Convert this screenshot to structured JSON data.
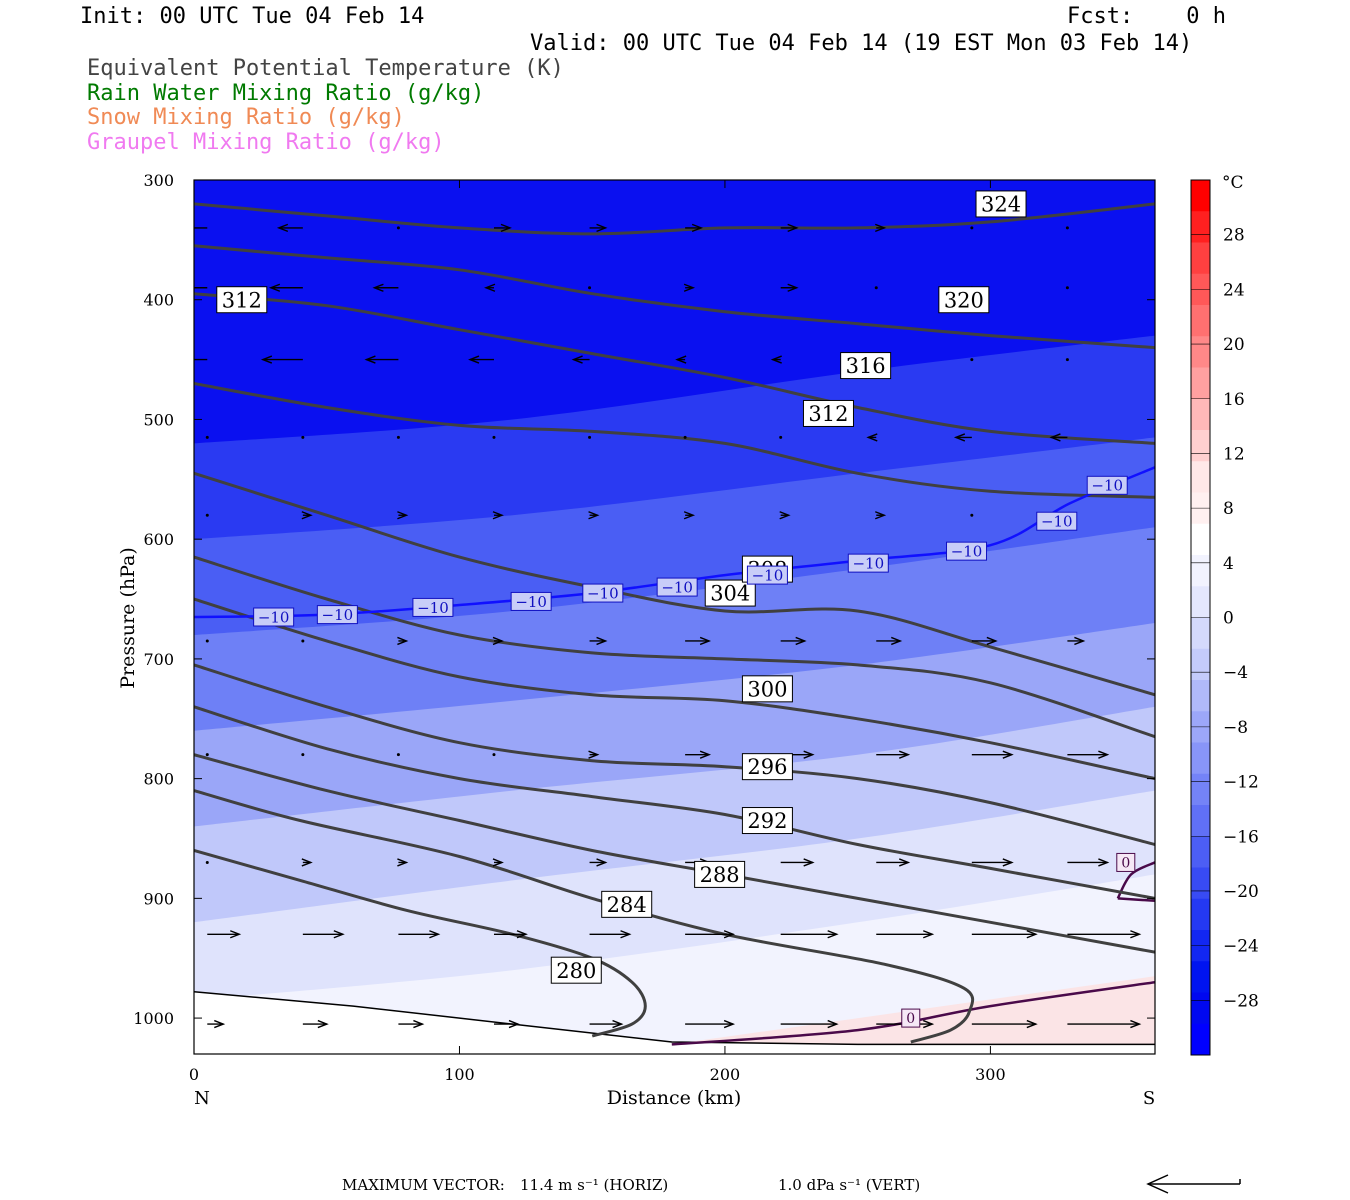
{
  "header": {
    "init": "Init: 00 UTC Tue 04 Feb 14",
    "fcst": "Fcst:    0 h",
    "valid": "Valid: 00 UTC Tue 04 Feb 14 (19 EST Mon 03 Feb 14)",
    "legend": [
      {
        "text": "Equivalent Potential Temperature (K)",
        "color": "#444444"
      },
      {
        "text": "Rain Water Mixing Ratio (g/kg)",
        "color": "#007a00"
      },
      {
        "text": "Snow Mixing Ratio (g/kg)",
        "color": "#f08a55"
      },
      {
        "text": "Graupel Mixing Ratio (g/kg)",
        "color": "#f07af0"
      }
    ]
  },
  "chart_data": {
    "type": "contour",
    "xlabel": "Distance (km)",
    "ylabel": "Pressure (hPa)",
    "xlim": [
      0,
      362
    ],
    "ylim": [
      1030,
      300
    ],
    "x_ticks": [
      0,
      100,
      200,
      300
    ],
    "y_ticks": [
      300,
      400,
      500,
      600,
      700,
      800,
      900,
      1000
    ],
    "x_end_labels": {
      "left": "N",
      "right": "S"
    },
    "colorbar": {
      "unit": "°C",
      "ticks": [
        28,
        24,
        20,
        16,
        12,
        8,
        4,
        0,
        -4,
        -8,
        -12,
        -16,
        -20,
        -24,
        -28
      ],
      "range": [
        -32,
        32
      ]
    },
    "temperature_fill": [
      {
        "x": [
          0,
          120,
          250,
          362
        ],
        "p": [
          520,
          500,
          460,
          430
        ]
      },
      {
        "x": [
          0,
          120,
          250,
          362
        ],
        "p": [
          600,
          580,
          545,
          515
        ]
      },
      {
        "x": [
          0,
          120,
          250,
          362
        ],
        "p": [
          680,
          660,
          625,
          590
        ]
      },
      {
        "x": [
          0,
          120,
          250,
          362
        ],
        "p": [
          760,
          735,
          705,
          670
        ]
      },
      {
        "x": [
          0,
          120,
          250,
          362
        ],
        "p": [
          840,
          810,
          780,
          740
        ]
      },
      {
        "x": [
          0,
          120,
          250,
          362
        ],
        "p": [
          920,
          885,
          850,
          810
        ]
      },
      {
        "x": [
          0,
          120,
          250,
          362
        ],
        "p": [
          985,
          960,
          920,
          880
        ]
      }
    ],
    "theta_e_contours": [
      {
        "value": "280",
        "x": [
          0,
          40,
          80,
          120,
          150,
          165,
          170,
          165,
          150
        ],
        "p": [
          860,
          885,
          910,
          930,
          950,
          970,
          990,
          1005,
          1015
        ]
      },
      {
        "value": "284",
        "x": [
          0,
          40,
          100,
          150,
          200,
          260,
          290,
          292,
          285,
          270
        ],
        "p": [
          810,
          835,
          865,
          900,
          930,
          955,
          975,
          995,
          1010,
          1020
        ]
      },
      {
        "value": "288",
        "x": [
          0,
          50,
          100,
          150,
          200,
          250,
          300,
          362
        ],
        "p": [
          780,
          810,
          835,
          860,
          880,
          900,
          920,
          945
        ]
      },
      {
        "value": "292",
        "x": [
          0,
          50,
          100,
          150,
          200,
          250,
          300,
          362
        ],
        "p": [
          740,
          775,
          800,
          815,
          830,
          855,
          875,
          900
        ]
      },
      {
        "value": "296",
        "x": [
          0,
          50,
          100,
          150,
          200,
          250,
          300,
          362
        ],
        "p": [
          705,
          740,
          770,
          785,
          790,
          800,
          820,
          855
        ]
      },
      {
        "value": "300",
        "x": [
          0,
          50,
          100,
          150,
          200,
          250,
          300,
          362
        ],
        "p": [
          650,
          685,
          715,
          730,
          735,
          750,
          770,
          800
        ]
      },
      {
        "value": "304",
        "x": [
          0,
          50,
          100,
          150,
          200,
          250,
          300,
          362
        ],
        "p": [
          615,
          650,
          680,
          695,
          700,
          705,
          720,
          765
        ]
      },
      {
        "value": "308",
        "x": [
          0,
          50,
          100,
          150,
          200,
          250,
          300,
          362
        ],
        "p": [
          545,
          580,
          615,
          640,
          660,
          660,
          690,
          730
        ]
      },
      {
        "value": "312",
        "x": [
          0,
          50,
          100,
          150,
          200,
          250,
          300,
          362
        ],
        "p": [
          470,
          490,
          505,
          510,
          520,
          545,
          560,
          565
        ]
      },
      {
        "value": "316",
        "x": [
          0,
          50,
          100,
          150,
          200,
          250,
          300,
          362
        ],
        "p": [
          395,
          405,
          425,
          445,
          465,
          490,
          510,
          520
        ]
      },
      {
        "value": "320",
        "x": [
          0,
          50,
          100,
          150,
          200,
          250,
          300,
          362
        ],
        "p": [
          355,
          365,
          375,
          395,
          410,
          420,
          430,
          440
        ]
      },
      {
        "value": "324",
        "x": [
          0,
          50,
          100,
          150,
          200,
          250,
          300,
          362
        ],
        "p": [
          320,
          330,
          340,
          345,
          340,
          340,
          335,
          320
        ]
      }
    ],
    "theta_e_labels": [
      {
        "text": "280",
        "x": 144,
        "p": 960
      },
      {
        "text": "284",
        "x": 163,
        "p": 905
      },
      {
        "text": "288",
        "x": 198,
        "p": 880
      },
      {
        "text": "292",
        "x": 216,
        "p": 835
      },
      {
        "text": "296",
        "x": 216,
        "p": 790
      },
      {
        "text": "300",
        "x": 216,
        "p": 725
      },
      {
        "text": "304",
        "x": 202,
        "p": 645
      },
      {
        "text": "308",
        "x": 216,
        "p": 625
      },
      {
        "text": "312",
        "x": 239,
        "p": 495
      },
      {
        "text": "316",
        "x": 253,
        "p": 455
      },
      {
        "text": "320",
        "x": 290,
        "p": 400
      },
      {
        "text": "324",
        "x": 304,
        "p": 320
      },
      {
        "text": "312",
        "x": 18,
        "p": 400
      }
    ],
    "isotherm_minus10": {
      "x": [
        0,
        50,
        100,
        150,
        200,
        250,
        300,
        330,
        362
      ],
      "p": [
        665,
        663,
        655,
        645,
        630,
        618,
        605,
        570,
        540
      ]
    },
    "isotherm_minus10_labels": [
      {
        "text": "−10",
        "x": 30,
        "p": 665
      },
      {
        "text": "−10",
        "x": 54,
        "p": 663
      },
      {
        "text": "−10",
        "x": 90,
        "p": 657
      },
      {
        "text": "−10",
        "x": 127,
        "p": 652
      },
      {
        "text": "−10",
        "x": 154,
        "p": 645
      },
      {
        "text": "−10",
        "x": 182,
        "p": 640
      },
      {
        "text": "−10",
        "x": 216,
        "p": 630
      },
      {
        "text": "−10",
        "x": 254,
        "p": 620
      },
      {
        "text": "−10",
        "x": 291,
        "p": 610
      },
      {
        "text": "−10",
        "x": 325,
        "p": 585
      },
      {
        "text": "−10",
        "x": 344,
        "p": 555
      }
    ],
    "zero_labels": [
      {
        "text": "0",
        "x": 270,
        "p": 1000
      },
      {
        "text": "0",
        "x": 351,
        "p": 870
      }
    ],
    "wind_rows": [
      {
        "p": 340,
        "u": [
          -4,
          -3,
          0,
          2,
          2,
          2,
          2,
          1,
          0,
          0
        ]
      },
      {
        "p": 390,
        "u": [
          -4,
          -4,
          -3,
          -1,
          0,
          1,
          2,
          0,
          0,
          0
        ]
      },
      {
        "p": 450,
        "u": [
          -5,
          -5,
          -4,
          -3,
          -2,
          -1,
          -1,
          0,
          0,
          0
        ]
      },
      {
        "p": 515,
        "u": [
          0,
          0,
          0,
          0,
          0,
          0,
          0,
          -1,
          -2,
          -2
        ]
      },
      {
        "p": 580,
        "u": [
          0,
          1,
          1,
          1,
          1,
          1,
          1,
          1,
          0,
          0
        ]
      },
      {
        "p": 685,
        "u": [
          0,
          0,
          1,
          1,
          2,
          3,
          3,
          3,
          3,
          2
        ]
      },
      {
        "p": 780,
        "u": [
          0,
          0,
          0,
          0,
          1,
          3,
          4,
          4,
          5,
          5
        ]
      },
      {
        "p": 870,
        "u": [
          0,
          1,
          1,
          1,
          2,
          3,
          4,
          4,
          5,
          5
        ]
      },
      {
        "p": 930,
        "u": [
          4,
          5,
          5,
          4,
          5,
          6,
          7,
          7,
          8,
          9
        ]
      },
      {
        "p": 1005,
        "u": [
          2,
          3,
          3,
          3,
          4,
          6,
          7,
          7,
          8,
          9
        ]
      }
    ],
    "terrain": {
      "x": [
        0,
        60,
        120,
        180,
        250,
        362
      ],
      "p": [
        978,
        990,
        1005,
        1020,
        1022,
        1022
      ]
    }
  },
  "footer": {
    "max_vector_label": "MAXIMUM VECTOR:",
    "horiz": "11.4 m s⁻¹ (HORIZ)",
    "vert": "1.0 dPa s⁻¹ (VERT)"
  },
  "colors": {
    "isotherm": "#1010ff",
    "theta_e": "#404040",
    "zero_line": "#4a0a4a",
    "cold_max": "#0000ff",
    "warm_max": "#ff0000"
  }
}
